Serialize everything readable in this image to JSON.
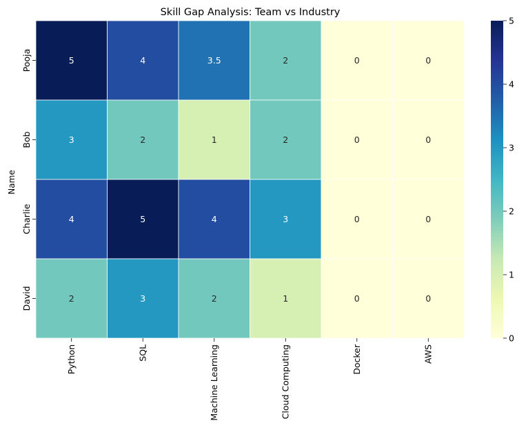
{
  "chart_data": {
    "type": "heatmap",
    "title": "Skill Gap Analysis: Team vs Industry",
    "xlabel": "",
    "ylabel": "Name",
    "columns": [
      "Python",
      "SQL",
      "Machine Learning",
      "Cloud Computing",
      "Docker",
      "AWS"
    ],
    "rows": [
      "Pooja",
      "Bob",
      "Charlie",
      "David"
    ],
    "values": [
      [
        5,
        4,
        3.5,
        2,
        0,
        0
      ],
      [
        3,
        2,
        1,
        2,
        0,
        0
      ],
      [
        4,
        5,
        4,
        3,
        0,
        0
      ],
      [
        2,
        3,
        2,
        1,
        0,
        0
      ]
    ],
    "value_labels": [
      [
        "5",
        "4",
        "3.5",
        "2",
        "0",
        "0"
      ],
      [
        "3",
        "2",
        "1",
        "2",
        "0",
        "0"
      ],
      [
        "4",
        "5",
        "4",
        "3",
        "0",
        "0"
      ],
      [
        "2",
        "3",
        "2",
        "1",
        "0",
        "0"
      ]
    ],
    "colorbar": {
      "range": [
        0,
        5
      ],
      "ticks": [
        0,
        1,
        2,
        3,
        4,
        5
      ],
      "tick_labels": [
        "0",
        "1",
        "2",
        "3",
        "4",
        "5"
      ]
    },
    "colormap": [
      "#ffffd9",
      "#edf8b1",
      "#c7e9b4",
      "#7fcdbb",
      "#41b6c4",
      "#1d91c0",
      "#225ea8",
      "#253494",
      "#081d58"
    ]
  }
}
